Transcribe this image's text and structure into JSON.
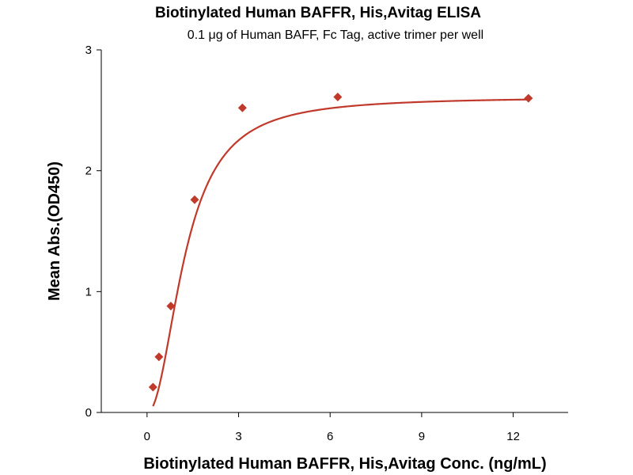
{
  "chart_data": {
    "type": "scatter",
    "title": "Biotinylated Human BAFFR, His,Avitag ELISA",
    "subtitle": "0.1 μg of Human BAFF, Fc Tag, active trimer per well",
    "xlabel": "Biotinylated Human BAFFR, His,Avitag Conc. (ng/mL)",
    "ylabel": "Mean Abs.(OD450)",
    "xlim": [
      -1.5,
      13.8
    ],
    "ylim": [
      0,
      3
    ],
    "xticks": [
      0,
      3,
      6,
      9,
      12
    ],
    "yticks": [
      0,
      1,
      2,
      3
    ],
    "grid": false,
    "series": [
      {
        "marker": "diamond",
        "color": "#c0392b",
        "fit": "sigmoidal",
        "x": [
          0.195,
          0.39,
          0.78,
          1.56,
          3.125,
          6.25,
          12.5
        ],
        "y": [
          0.21,
          0.46,
          0.88,
          1.76,
          2.52,
          2.61,
          2.6
        ]
      }
    ],
    "fit_params": {
      "bottom": 0,
      "top": 2.61,
      "ec50": 1.25,
      "hill": 2.1
    }
  }
}
